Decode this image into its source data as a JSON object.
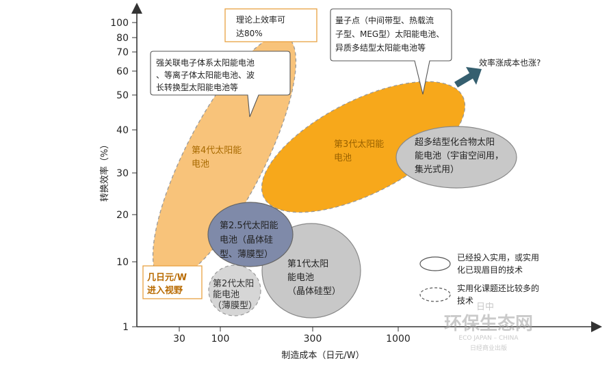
{
  "chart_data": {
    "type": "scatter",
    "xlabel": "制造成本（日元/W）",
    "ylabel": "转换效率（%）",
    "x_scale": "log",
    "y_scale": "log",
    "x_ticks": [
      "30",
      "100",
      "300",
      "1000"
    ],
    "y_ticks": [
      "1",
      "10",
      "20",
      "30",
      "40",
      "50",
      "60",
      "70",
      "80",
      "100"
    ],
    "regions": [
      {
        "name": "第1代太阳能电池（晶体硅型）",
        "label": [
          "第1代太阳",
          "能电池",
          "（晶体硅型）"
        ],
        "status": "已经投入实用",
        "color": "#c8c8c8"
      },
      {
        "name": "第2代太阳能电池（薄膜型）",
        "label": [
          "第2代太阳",
          "能电池",
          "（薄膜型）"
        ],
        "status": "已经投入实用",
        "color": "#d6d6d6"
      },
      {
        "name": "第2.5代太阳能电池（晶体硅型、薄膜型）",
        "label": [
          "第2.5代太阳能",
          "电池（晶体硅",
          "型、薄膜型）"
        ],
        "status": "已经投入实用",
        "color": "#7f8aa9"
      },
      {
        "name": "第3代太阳能电池",
        "label": [
          "第3代太阳能",
          "电池"
        ],
        "status": "实用化课题还比较多",
        "color": "#f7a81b"
      },
      {
        "name": "第4代太阳能电池",
        "label": [
          "第4代太阳能",
          "电池"
        ],
        "status": "实用化课题还比较多",
        "color": "#f8c37a"
      },
      {
        "name": "超多结型化合物太阳能电池（宇宙空间用，集光式用）",
        "label": [
          "超多结型化合物太阳",
          "能电池（宇宙空间用，",
          "集光式用）"
        ],
        "status": "已经投入实用",
        "color": "#c8c8c8"
      }
    ],
    "annotations": {
      "theory_box": [
        "理论上效率可",
        "达80%"
      ],
      "gen4_callout": [
        "强关联电子体系太阳能电池",
        "、等离子体太阳能电池、波",
        "长转换型太阳能电池等"
      ],
      "gen3_callout": [
        "量子点（中间带型、热载流",
        "子型、MEG型）太阳能电池、",
        "异质多结型太阳能电池等"
      ],
      "arrow_text": "效率涨成本也涨?",
      "few_yen": [
        "几日元/W",
        "进入视野"
      ]
    },
    "legend": [
      {
        "style": "solid",
        "label": [
          "已经投入实用，或实用",
          "化已现眉目的技术"
        ]
      },
      {
        "style": "dashed",
        "label": [
          "实用化课题还比较多的",
          "技术"
        ]
      }
    ]
  },
  "watermark": {
    "top": "日中",
    "main": "环保生态网",
    "sub": "ECO JAPAN – CHINA",
    "bottom": "日经商业出版"
  },
  "colors": {
    "axis": "#333333",
    "gen3_text": "#9a6200",
    "gen4_text": "#a86a00",
    "box_orange": "#e8a040",
    "arrow": "#355f6f"
  }
}
